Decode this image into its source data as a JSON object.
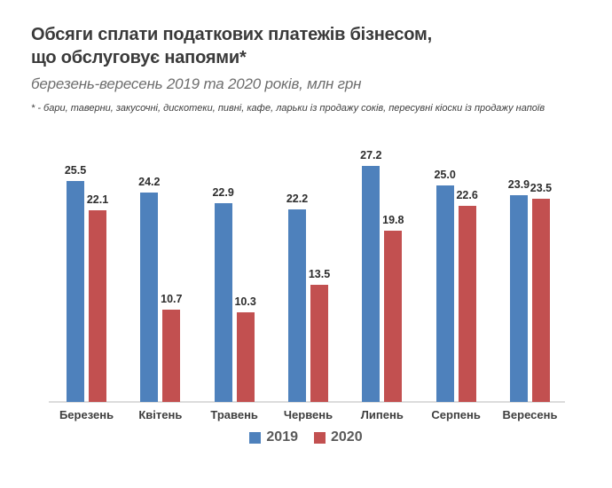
{
  "header": {
    "title_line1": "Обсяги сплати податкових платежів бізнесом,",
    "title_line2": "що обслуговує напоями*",
    "subtitle": "березень-вересень 2019 та 2020 років, млн грн",
    "footnote": "* - бари, таверни, закусочні, дискотеки, пивні, кафе, ларьки із продажу соків, пересувні кіоски із продажу напоїв"
  },
  "colors": {
    "series_2019": "#4e81bc",
    "series_2020": "#c25050",
    "axis_line": "#dcdcdc",
    "title_text": "#3a3a3a",
    "subtitle_text": "#6e6e6e",
    "value_label_text": "#2d2d2d",
    "legend_text": "#595959"
  },
  "chart_data": {
    "type": "bar",
    "title": "Обсяги сплати податкових платежів бізнесом, що обслуговує напоями*",
    "subtitle": "березень-вересень 2019 та 2020 років, млн грн",
    "xlabel": "",
    "ylabel": "млн грн",
    "ylim": [
      0,
      29.5
    ],
    "grid": false,
    "legend_position": "bottom",
    "value_labels": true,
    "categories": [
      "Березень",
      "Квітень",
      "Травень",
      "Червень",
      "Липень",
      "Серпень",
      "Вересень"
    ],
    "series": [
      {
        "name": "2019",
        "color": "#4e81bc",
        "values": [
          25.5,
          24.2,
          22.9,
          22.2,
          27.2,
          25.0,
          23.9
        ],
        "labels": [
          "25.5",
          "24.2",
          "22.9",
          "22.2",
          "27.2",
          "25.0",
          "23.9"
        ]
      },
      {
        "name": "2020",
        "color": "#c25050",
        "values": [
          22.1,
          10.7,
          10.3,
          13.5,
          19.8,
          22.6,
          23.5
        ],
        "labels": [
          "22.1",
          "10.7",
          "10.3",
          "13.5",
          "19.8",
          "22.6",
          "23.5"
        ]
      }
    ]
  }
}
